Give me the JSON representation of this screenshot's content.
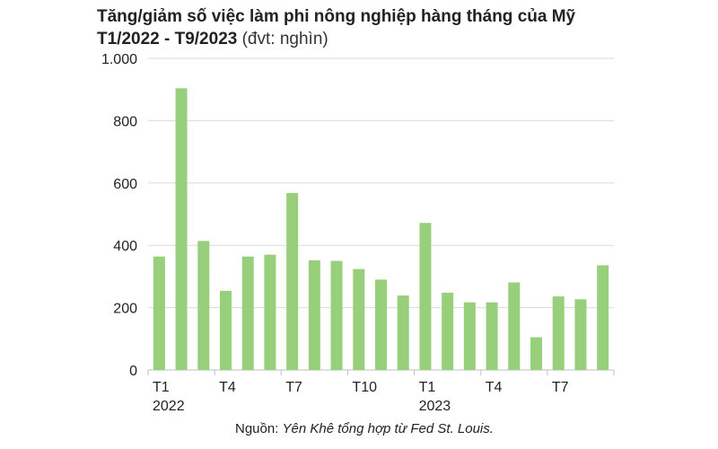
{
  "title": {
    "line1": "Tăng/giảm số việc làm phi nông nghiệp hàng tháng của Mỹ",
    "line2": "T1/2022 - T9/2023",
    "unit": "(đvt: nghìn)"
  },
  "source": {
    "prefix": "Nguồn: ",
    "text": "Yên Khê tổng hợp từ Fed St. Louis."
  },
  "chart_data": {
    "type": "bar",
    "title": "Tăng/giảm số việc làm phi nông nghiệp hàng tháng của Mỹ T1/2022 - T9/2023",
    "unit": "(đvt: nghìn)",
    "categories": [
      "T1/2022",
      "T2/2022",
      "T3/2022",
      "T4/2022",
      "T5/2022",
      "T6/2022",
      "T7/2022",
      "T8/2022",
      "T9/2022",
      "T10/2022",
      "T11/2022",
      "T12/2022",
      "T1/2023",
      "T2/2023",
      "T3/2023",
      "T4/2023",
      "T5/2023",
      "T6/2023",
      "T7/2023",
      "T8/2023",
      "T9/2023"
    ],
    "values": [
      364,
      904,
      414,
      254,
      364,
      370,
      568,
      352,
      350,
      324,
      290,
      239,
      472,
      248,
      217,
      217,
      281,
      105,
      236,
      227,
      336
    ],
    "ylim": [
      0,
      1000
    ],
    "yticks": [
      0,
      200,
      400,
      600,
      800,
      1000
    ],
    "ytick_labels": [
      "0",
      "200",
      "400",
      "600",
      "800",
      "1.000"
    ],
    "xtick_labels": [
      {
        "index": 0,
        "label": "T1"
      },
      {
        "index": 3,
        "label": "T4"
      },
      {
        "index": 6,
        "label": "T7"
      },
      {
        "index": 9,
        "label": "T10"
      },
      {
        "index": 12,
        "label": "T1"
      },
      {
        "index": 15,
        "label": "T4"
      },
      {
        "index": 18,
        "label": "T7"
      }
    ],
    "year_labels": [
      {
        "index": 0,
        "label": "2022"
      },
      {
        "index": 12,
        "label": "2023"
      }
    ],
    "grid": true,
    "bar_color": "#98cf7b",
    "grid_color": "#d9d9d9"
  }
}
